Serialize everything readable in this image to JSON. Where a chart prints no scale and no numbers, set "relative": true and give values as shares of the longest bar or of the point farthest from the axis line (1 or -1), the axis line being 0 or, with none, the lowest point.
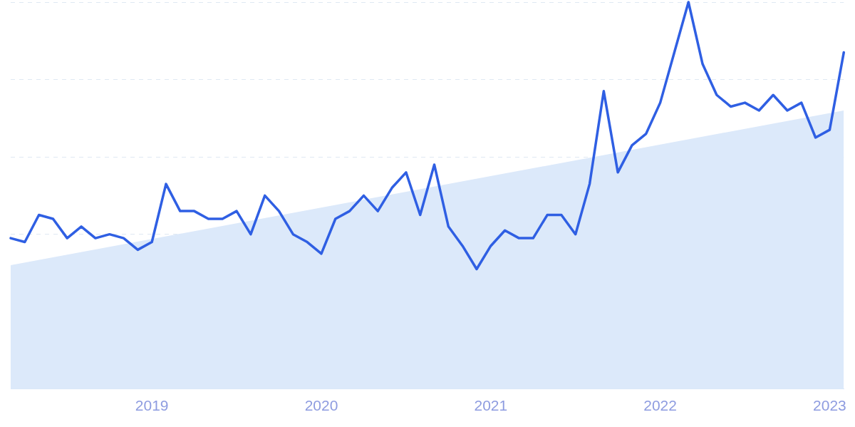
{
  "chart_data": {
    "type": "line",
    "relative": true,
    "grid": "y",
    "legend": false,
    "marker": "none",
    "line_style": "solid",
    "x": [
      "2018-03",
      "2018-04",
      "2018-05",
      "2018-06",
      "2018-07",
      "2018-08",
      "2018-09",
      "2018-10",
      "2018-11",
      "2018-12",
      "2019-01",
      "2019-02",
      "2019-03",
      "2019-04",
      "2019-05",
      "2019-06",
      "2019-07",
      "2019-08",
      "2019-09",
      "2019-10",
      "2019-11",
      "2019-12",
      "2020-01",
      "2020-02",
      "2020-03",
      "2020-04",
      "2020-05",
      "2020-06",
      "2020-07",
      "2020-08",
      "2020-09",
      "2020-10",
      "2020-11",
      "2020-12",
      "2021-01",
      "2021-02",
      "2021-03",
      "2021-04",
      "2021-05",
      "2021-06",
      "2021-07",
      "2021-08",
      "2021-09",
      "2021-10",
      "2021-11",
      "2021-12",
      "2022-01",
      "2022-02",
      "2022-03",
      "2022-04",
      "2022-05",
      "2022-06",
      "2022-07",
      "2022-08",
      "2022-09",
      "2022-10",
      "2022-11",
      "2022-12",
      "2023-01",
      "2023-02"
    ],
    "xlim": [
      "2018-03",
      "2023-02"
    ],
    "xticks": [
      "2019",
      "2020",
      "2021",
      "2022",
      "2023"
    ],
    "series": [
      {
        "type": "area",
        "color": "#dce9fa",
        "x": [
          "2018-03",
          "2023-02"
        ],
        "values": [
          0.32,
          0.72
        ]
      },
      {
        "color": "#2f5fe3",
        "values": [
          0.39,
          0.38,
          0.45,
          0.44,
          0.39,
          0.42,
          0.39,
          0.4,
          0.39,
          0.36,
          0.38,
          0.53,
          0.46,
          0.46,
          0.44,
          0.44,
          0.46,
          0.4,
          0.5,
          0.46,
          0.4,
          0.38,
          0.35,
          0.44,
          0.46,
          0.5,
          0.46,
          0.52,
          0.56,
          0.45,
          0.58,
          0.42,
          0.37,
          0.31,
          0.37,
          0.41,
          0.39,
          0.39,
          0.45,
          0.45,
          0.4,
          0.53,
          0.77,
          0.56,
          0.63,
          0.66,
          0.74,
          0.87,
          1,
          0.84,
          0.76,
          0.73,
          0.74,
          0.72,
          0.76,
          0.72,
          0.74,
          0.65,
          0.67,
          0.87
        ]
      }
    ]
  }
}
